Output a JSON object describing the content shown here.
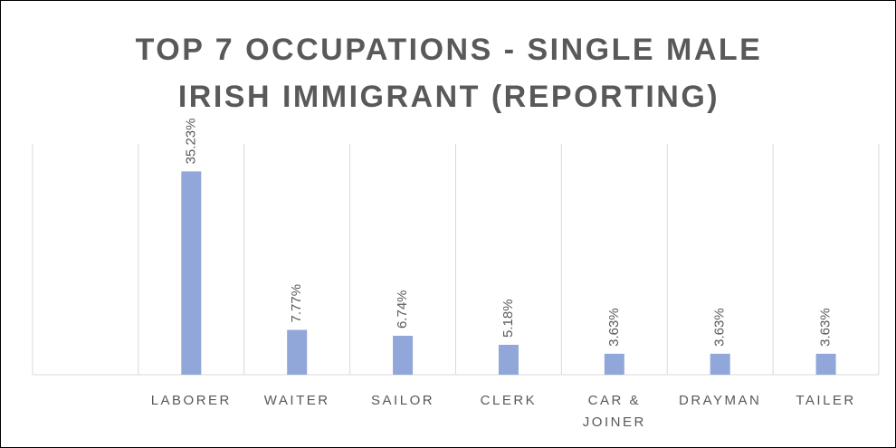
{
  "chart_data": {
    "type": "bar",
    "title": "TOP 7 OCCUPATIONS - SINGLE MALE IRISH IMMIGRANT (REPORTING)",
    "categories": [
      null,
      "LABORER",
      "WAITER",
      "SAILOR",
      "CLERK",
      "CAR & JOINER",
      "DRAYMAN",
      "TAILER"
    ],
    "values": [
      null,
      35.23,
      7.77,
      6.74,
      5.18,
      3.63,
      3.63,
      3.63
    ],
    "value_labels": [
      null,
      "35.23%",
      "7.77%",
      "6.74%",
      "5.18%",
      "3.63%",
      "3.63%",
      "3.63%"
    ],
    "color": "#91a7d9",
    "ylim": [
      0,
      40
    ],
    "grid": true
  }
}
